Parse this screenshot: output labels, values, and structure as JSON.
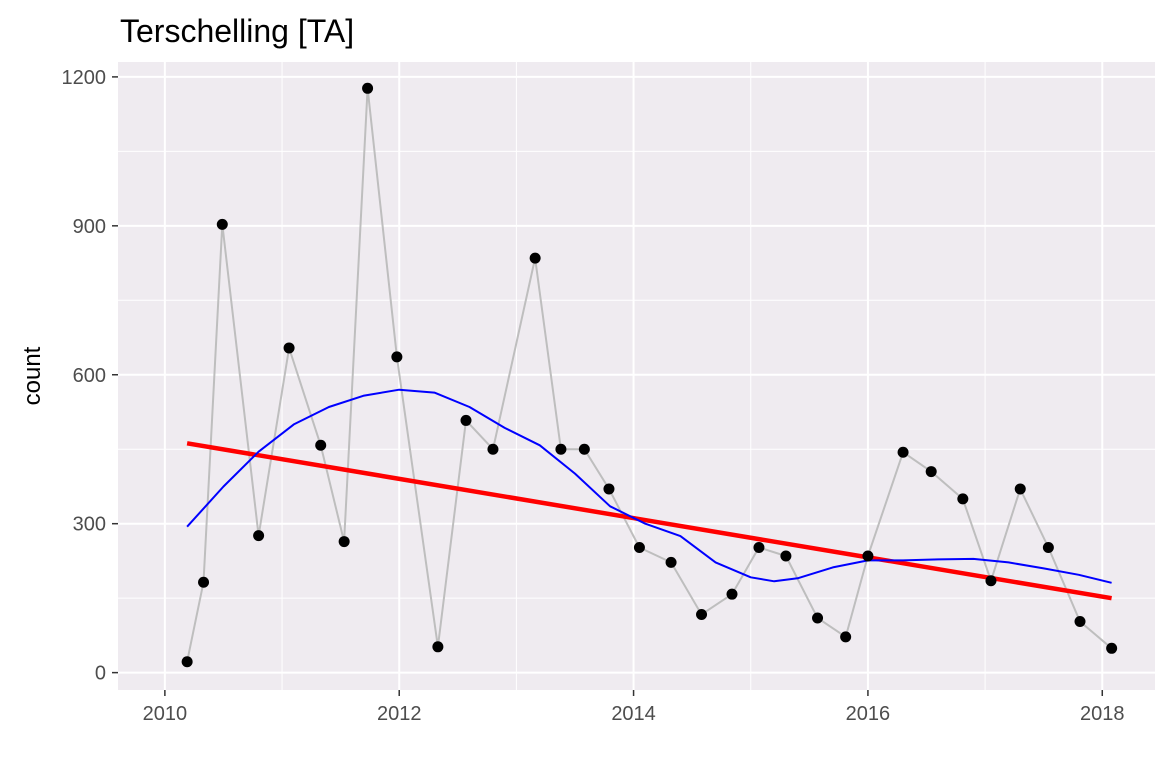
{
  "chart_data": {
    "type": "line",
    "title": "Terschelling  [TA]",
    "xlabel": "",
    "ylabel": "count",
    "xlim": [
      2009.6,
      2018.45
    ],
    "ylim": [
      -35,
      1230
    ],
    "x_ticks": [
      2010,
      2012,
      2014,
      2016,
      2018
    ],
    "x_tick_labels": [
      "2010",
      "2012",
      "2014",
      "2016",
      "2018"
    ],
    "y_ticks": [
      0,
      300,
      600,
      900,
      1200
    ],
    "y_tick_labels": [
      "0",
      "300",
      "600",
      "900",
      "1200"
    ],
    "grid": true,
    "series": [
      {
        "name": "observations",
        "style": "points-with-line",
        "point_color": "#000000",
        "line_color": "#bebebe",
        "x": [
          2010.19,
          2010.33,
          2010.49,
          2010.8,
          2011.06,
          2011.33,
          2011.53,
          2011.73,
          2011.98,
          2012.33,
          2012.57,
          2012.8,
          2013.16,
          2013.38,
          2013.58,
          2013.79,
          2014.05,
          2014.32,
          2014.58,
          2014.84,
          2015.07,
          2015.3,
          2015.57,
          2015.81,
          2016.0,
          2016.3,
          2016.54,
          2016.81,
          2017.05,
          2017.3,
          2017.54,
          2017.81,
          2018.08
        ],
        "y": [
          22,
          182,
          903,
          276,
          654,
          458,
          264,
          1177,
          636,
          52,
          508,
          450,
          835,
          450,
          450,
          370,
          252,
          222,
          117,
          158,
          252,
          235,
          110,
          72,
          235,
          444,
          405,
          350,
          185,
          370,
          252,
          103,
          49
        ]
      },
      {
        "name": "linear trend",
        "style": "line",
        "color": "#ff0000",
        "x": [
          2010.19,
          2018.08
        ],
        "y": [
          462,
          150
        ]
      },
      {
        "name": "smooth",
        "style": "line",
        "color": "#0000ff",
        "x": [
          2010.19,
          2010.5,
          2010.8,
          2011.1,
          2011.4,
          2011.7,
          2012.0,
          2012.3,
          2012.6,
          2012.9,
          2013.2,
          2013.5,
          2013.8,
          2014.1,
          2014.4,
          2014.7,
          2015.0,
          2015.2,
          2015.4,
          2015.7,
          2016.0,
          2016.3,
          2016.6,
          2016.9,
          2017.2,
          2017.5,
          2017.8,
          2018.08
        ],
        "y": [
          294,
          375,
          445,
          500,
          535,
          558,
          570,
          564,
          535,
          493,
          458,
          401,
          335,
          300,
          275,
          222,
          192,
          184,
          190,
          212,
          226,
          226,
          228,
          229,
          222,
          210,
          197,
          181
        ]
      }
    ]
  }
}
